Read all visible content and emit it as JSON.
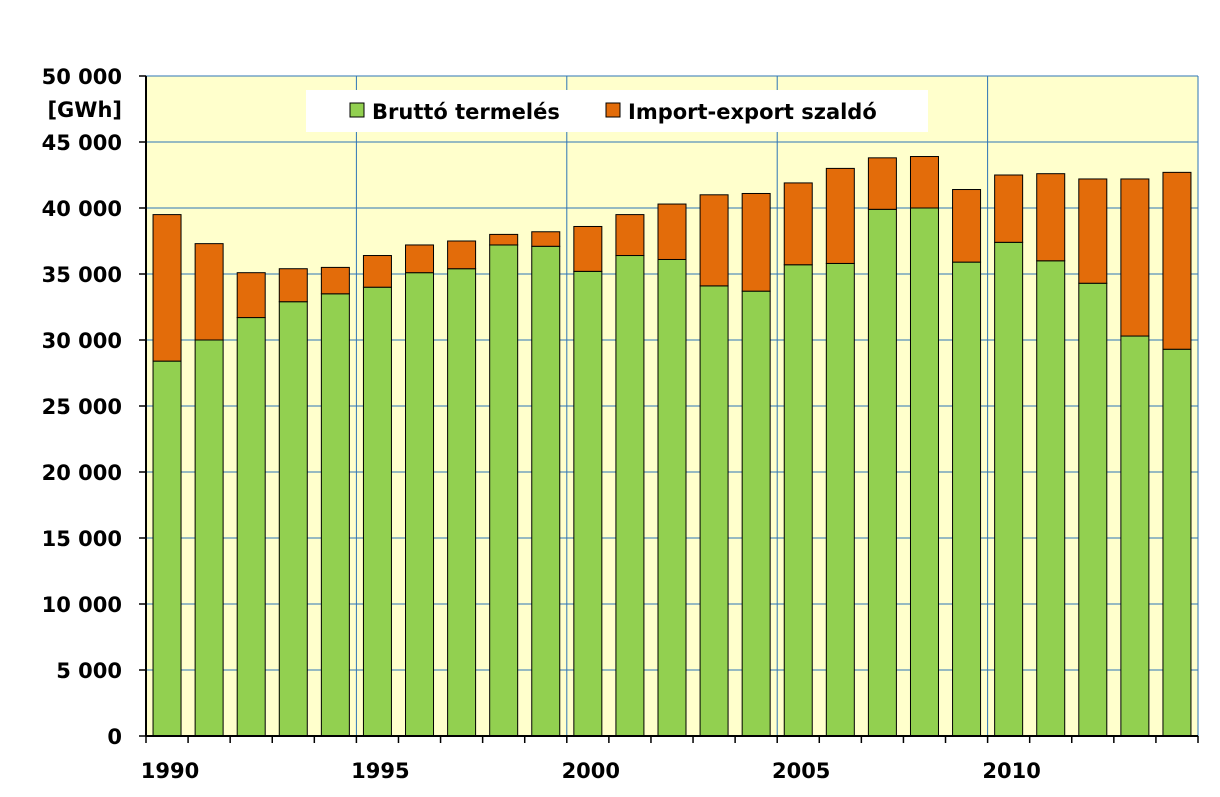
{
  "chart_data": {
    "type": "bar",
    "stacked": true,
    "ylabel": "[GWh]",
    "ylim": [
      0,
      50000
    ],
    "y_ticks": [
      0,
      5000,
      10000,
      15000,
      20000,
      25000,
      30000,
      35000,
      40000,
      45000,
      50000
    ],
    "y_tick_labels": [
      "0",
      "5 000",
      "10 000",
      "15 000",
      "20 000",
      "25 000",
      "30 000",
      "35 000",
      "40 000",
      "45 000",
      "50 000"
    ],
    "x_tick_labels": [
      "1990",
      "1995",
      "2000",
      "2005",
      "2010"
    ],
    "categories": [
      1990,
      1991,
      1992,
      1993,
      1994,
      1995,
      1996,
      1997,
      1998,
      1999,
      2000,
      2001,
      2002,
      2003,
      2004,
      2005,
      2006,
      2007,
      2008,
      2009,
      2010,
      2011,
      2012,
      2013,
      2014
    ],
    "series": [
      {
        "name": "Bruttó termelés",
        "color": "#92d050",
        "values": [
          28400,
          30000,
          31700,
          32900,
          33500,
          34000,
          35100,
          35400,
          37200,
          37100,
          35200,
          36400,
          36100,
          34100,
          33700,
          35700,
          35800,
          39900,
          40000,
          35900,
          37400,
          36000,
          34300,
          30300,
          29300
        ]
      },
      {
        "name": "Import-export szaldó",
        "color": "#e36c0a",
        "values": [
          11100,
          7300,
          3400,
          2500,
          2000,
          2400,
          2100,
          2100,
          800,
          1100,
          3400,
          3100,
          4200,
          6900,
          7400,
          6200,
          7200,
          3900,
          3900,
          5500,
          5100,
          6600,
          7900,
          11900,
          13400
        ]
      }
    ],
    "legend_position": "top-center",
    "grid": true,
    "background_color": "#ffffcc"
  }
}
